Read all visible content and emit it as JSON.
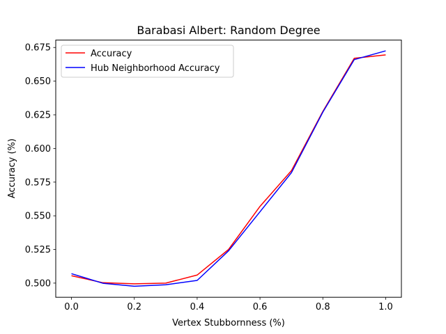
{
  "chart_data": {
    "type": "line",
    "title": "Barabasi Albert: Random Degree",
    "xlabel": "Vertex Stubbornness (%)",
    "ylabel": "Accuracy (%)",
    "xlim": [
      -0.05,
      1.05
    ],
    "ylim": [
      0.4895,
      0.6805
    ],
    "x_ticks": [
      "0.0",
      "0.2",
      "0.4",
      "0.6",
      "0.8",
      "1.0"
    ],
    "y_ticks": [
      "0.500",
      "0.525",
      "0.550",
      "0.575",
      "0.600",
      "0.625",
      "0.650",
      "0.675"
    ],
    "x": [
      0.0,
      0.1,
      0.2,
      0.3,
      0.4,
      0.5,
      0.6,
      0.7,
      0.8,
      0.9,
      1.0
    ],
    "series": [
      {
        "name": "Accuracy",
        "color": "#ff0000",
        "values": [
          0.5055,
          0.5003,
          0.4995,
          0.5,
          0.506,
          0.525,
          0.557,
          0.5835,
          0.6275,
          0.667,
          0.6695
        ]
      },
      {
        "name": "Hub Neighborhood Accuracy",
        "color": "#0000ff",
        "values": [
          0.507,
          0.4999,
          0.4977,
          0.4988,
          0.502,
          0.524,
          0.553,
          0.582,
          0.627,
          0.666,
          0.6725
        ]
      }
    ],
    "legend_position": "top-left",
    "grid": false
  }
}
